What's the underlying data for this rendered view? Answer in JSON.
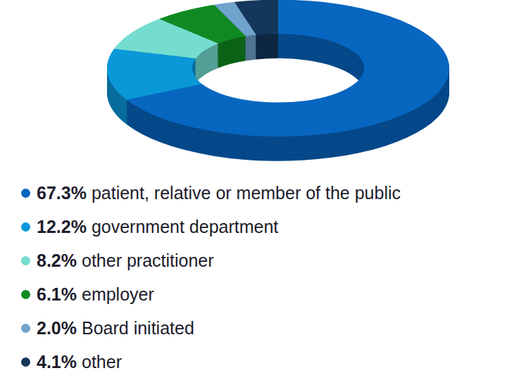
{
  "chart_data": {
    "type": "donut",
    "categories": [
      "patient, relative or member of the public",
      "government department",
      "other practitioner",
      "employer",
      "Board initiated",
      "other"
    ],
    "values": [
      67.3,
      12.2,
      8.2,
      6.1,
      2.0,
      4.1
    ],
    "value_labels": [
      "67.3%",
      "12.2%",
      "8.2%",
      "6.1%",
      "2.0%",
      "4.1%"
    ],
    "colors": [
      "#0766bf",
      "#0a98d8",
      "#74ddd0",
      "#0f8a22",
      "#6fa3cc",
      "#14365b"
    ]
  }
}
